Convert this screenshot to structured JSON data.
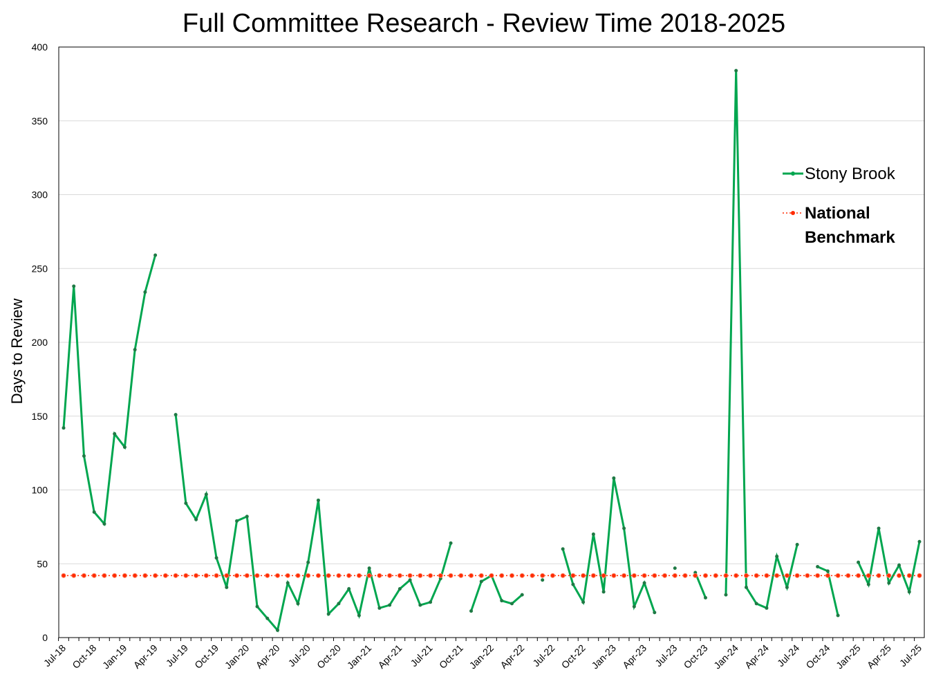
{
  "chart_data": {
    "type": "line",
    "title": "Full Committee Research - Review Time 2018-2025",
    "y_label": "Days to Review",
    "categories": [
      "Jul-18",
      null,
      null,
      "Oct-18",
      null,
      null,
      "Jan-19",
      null,
      null,
      "Apr-19",
      null,
      null,
      "Jul-19",
      null,
      null,
      "Oct-19",
      null,
      null,
      "Jan-20",
      null,
      null,
      "Apr-20",
      null,
      null,
      "Jul-20",
      null,
      null,
      "Oct-20",
      null,
      null,
      "Jan-21",
      null,
      null,
      "Apr-21",
      null,
      null,
      "Jul-21",
      null,
      null,
      "Oct-21",
      null,
      null,
      "Jan-22",
      null,
      null,
      "Apr-22",
      null,
      null,
      "Jul-22",
      null,
      null,
      "Oct-22",
      null,
      null,
      "Jan-23",
      null,
      null,
      "Apr-23",
      null,
      null,
      "Jul-23",
      null,
      null,
      "Oct-23",
      null,
      null,
      "Jan-24",
      null,
      null,
      "Apr-24",
      null,
      null,
      "Jul-24",
      null,
      null,
      "Oct-24",
      null,
      null,
      "Jan-25",
      null,
      null,
      "Apr-25",
      null,
      null,
      "Jul-25"
    ],
    "series": [
      {
        "name": "Stony Brook",
        "color": "#00a64f",
        "style": "solid",
        "values": [
          142,
          238,
          123,
          85,
          77,
          138,
          129,
          195,
          234,
          259,
          null,
          151,
          91,
          80,
          97,
          54,
          34,
          79,
          82,
          21,
          13,
          5,
          37,
          23,
          51,
          93,
          16,
          23,
          33,
          15,
          47,
          20,
          22,
          33,
          39,
          22,
          24,
          40,
          64,
          null,
          18,
          38,
          42,
          25,
          23,
          29,
          null,
          39,
          null,
          60,
          36,
          24,
          70,
          31,
          108,
          74,
          21,
          37,
          17,
          null,
          47,
          null,
          44,
          27,
          null,
          29,
          384,
          34,
          23,
          20,
          55,
          34,
          63,
          null,
          48,
          45,
          15,
          null,
          51,
          36,
          74,
          37,
          49,
          31,
          65
        ]
      },
      {
        "name": "National Benchmark",
        "color": "#ff2a00",
        "style": "dotted",
        "values": [
          42,
          42,
          42,
          42,
          42,
          42,
          42,
          42,
          42,
          42,
          42,
          42,
          42,
          42,
          42,
          42,
          42,
          42,
          42,
          42,
          42,
          42,
          42,
          42,
          42,
          42,
          42,
          42,
          42,
          42,
          42,
          42,
          42,
          42,
          42,
          42,
          42,
          42,
          42,
          42,
          42,
          42,
          42,
          42,
          42,
          42,
          42,
          42,
          42,
          42,
          42,
          42,
          42,
          42,
          42,
          42,
          42,
          42,
          42,
          42,
          42,
          42,
          42,
          42,
          42,
          42,
          42,
          42,
          42,
          42,
          42,
          42,
          42,
          42,
          42,
          42,
          42,
          42,
          42,
          42,
          42,
          42,
          42,
          42,
          42
        ]
      }
    ],
    "ylim": [
      0,
      400
    ],
    "yticks": [
      0,
      50,
      100,
      150,
      200,
      250,
      300,
      350,
      400
    ],
    "grid": true,
    "legend": "right"
  }
}
